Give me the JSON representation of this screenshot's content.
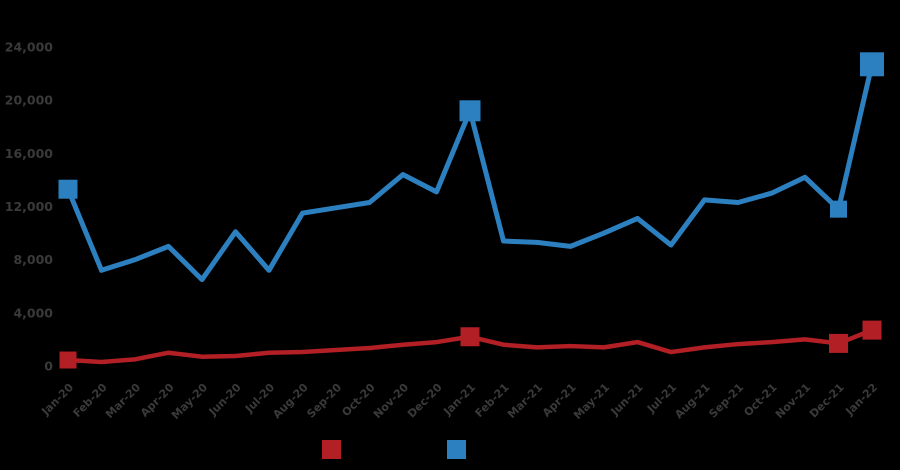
{
  "chart_data": {
    "type": "line",
    "title": "",
    "background": "#000000",
    "label_color": "#3a3a3a",
    "grid": false,
    "categories": [
      "Jan-20",
      "Feb-20",
      "Mar-20",
      "Apr-20",
      "May-20",
      "Jun-20",
      "Jul-20",
      "Aug-20",
      "Sep-20",
      "Oct-20",
      "Nov-20",
      "Dec-20",
      "Jan-21",
      "Feb-21",
      "Mar-21",
      "Apr-21",
      "May-21",
      "Jun-21",
      "Jul-21",
      "Aug-21",
      "Sep-21",
      "Oct-21",
      "Nov-21",
      "Dec-21",
      "Jan-22"
    ],
    "y_axis": {
      "min": 0,
      "max": 24000,
      "ticks": [
        {
          "value": 0,
          "label": "0"
        },
        {
          "value": 4000,
          "label": "4,000"
        },
        {
          "value": 8000,
          "label": "8,000"
        },
        {
          "value": 12000,
          "label": "12,000"
        },
        {
          "value": 16000,
          "label": "16,000"
        },
        {
          "value": 20000,
          "label": "20,000"
        },
        {
          "value": 24000,
          "label": "24,000"
        }
      ]
    },
    "series": [
      {
        "name": "blue-series",
        "color": "#2d80c0",
        "line_width": 5,
        "values": [
          13300,
          7200,
          8000,
          9000,
          6500,
          10100,
          7200,
          11500,
          11900,
          12300,
          14400,
          13100,
          19200,
          9400,
          9300,
          9000,
          10000,
          11100,
          9100,
          12500,
          12300,
          13000,
          14200,
          11800,
          22700
        ],
        "markers": [
          {
            "index": 0,
            "size": 19
          },
          {
            "index": 12,
            "size": 21
          },
          {
            "index": 23,
            "size": 17
          },
          {
            "index": 24,
            "size": 24
          }
        ]
      },
      {
        "name": "red-series",
        "color": "#b21f24",
        "line_width": 4.5,
        "values": [
          450,
          300,
          500,
          1000,
          700,
          750,
          1000,
          1050,
          1200,
          1350,
          1600,
          1800,
          2200,
          1600,
          1400,
          1500,
          1400,
          1800,
          1050,
          1400,
          1650,
          1800,
          2000,
          1700,
          2700
        ],
        "markers": [
          {
            "index": 0,
            "size": 17
          },
          {
            "index": 12,
            "size": 19
          },
          {
            "index": 23,
            "size": 19
          },
          {
            "index": 24,
            "size": 19
          }
        ]
      }
    ],
    "legend": {
      "position": "bottom-center",
      "items": [
        {
          "series": "red-series",
          "color": "#b21f24",
          "label": ""
        },
        {
          "series": "blue-series",
          "color": "#2d80c0",
          "label": ""
        }
      ]
    }
  }
}
